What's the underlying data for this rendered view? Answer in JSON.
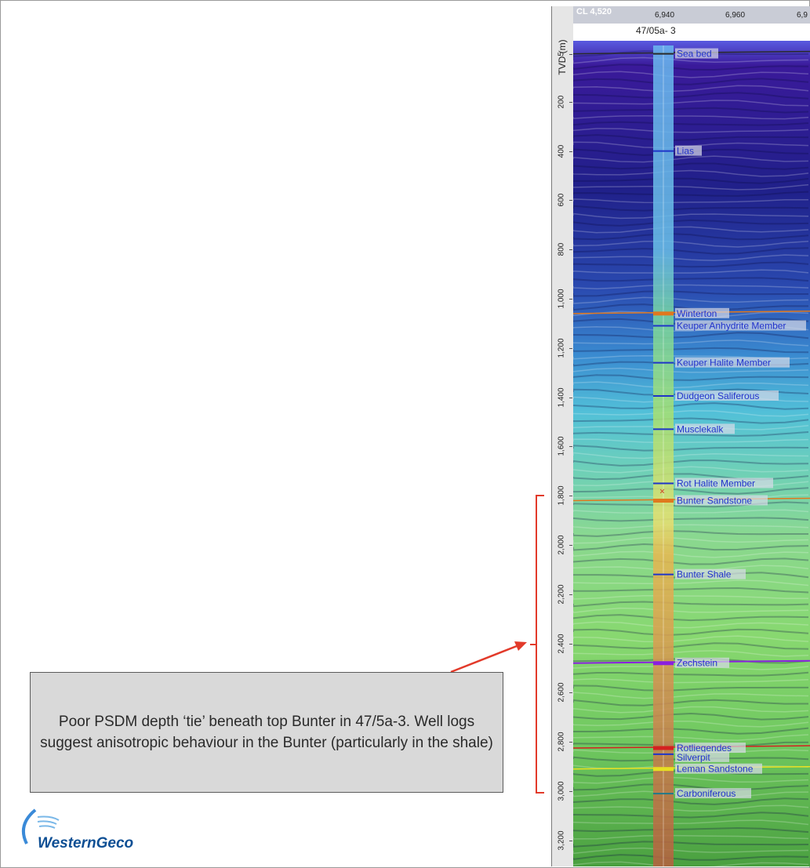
{
  "header": {
    "cl_label": "CL 4,520",
    "trace_ticks": [
      "6,940",
      "6,960",
      "6,9"
    ],
    "well_name": "47/05a- 3"
  },
  "depth_axis": {
    "title": "TVD (m)",
    "ticks": [
      "5",
      "200",
      "400",
      "600",
      "800",
      "1,000",
      "1,200",
      "1,400",
      "1,600",
      "1,800",
      "2,000",
      "2,200",
      "2,400",
      "2,600",
      "2,800",
      "3,000",
      "3,200"
    ]
  },
  "formations": [
    {
      "name": "Sea bed",
      "depth_m": 5,
      "color": "#2a2a2a"
    },
    {
      "name": "Lias",
      "depth_m": 400,
      "color": "#1f35c8"
    },
    {
      "name": "Winterton",
      "depth_m": 1060,
      "color": "#e0781e"
    },
    {
      "name": "Keuper Anhydrite Member",
      "depth_m": 1110,
      "color": "#1f35c8"
    },
    {
      "name": "Keuper Halite Member",
      "depth_m": 1260,
      "color": "#1f35c8"
    },
    {
      "name": "Dudgeon Saliferous",
      "depth_m": 1395,
      "color": "#1f35c8"
    },
    {
      "name": "Musclekalk",
      "depth_m": 1530,
      "color": "#1f35c8"
    },
    {
      "name": "Rot Halite Member",
      "depth_m": 1750,
      "color": "#1f35c8"
    },
    {
      "name": "Bunter Sandstone",
      "depth_m": 1820,
      "color": "#e0781e"
    },
    {
      "name": "Bunter Shale",
      "depth_m": 2120,
      "color": "#1f35c8"
    },
    {
      "name": "Zechstein",
      "depth_m": 2480,
      "color": "#8a1fe0"
    },
    {
      "name": "Rotliegendes",
      "depth_m": 2825,
      "color": "#d42020"
    },
    {
      "name": "Silverpit",
      "depth_m": 2850,
      "color": "#1f35c8"
    },
    {
      "name": "Leman Sandstone",
      "depth_m": 2910,
      "color": "#e8e020"
    },
    {
      "name": "Carboniferous",
      "depth_m": 3010,
      "color": "#1f7a8a"
    }
  ],
  "callout": {
    "text": "Poor PSDM depth ‘tie’ beneath top Bunter in 47/5a-3. Well logs suggest anisotropic behaviour in the Bunter (particularly in the shale)",
    "arrow_color": "#e23a2a"
  },
  "logo": {
    "text": "WesternGeco",
    "color": "#0e4f94"
  }
}
